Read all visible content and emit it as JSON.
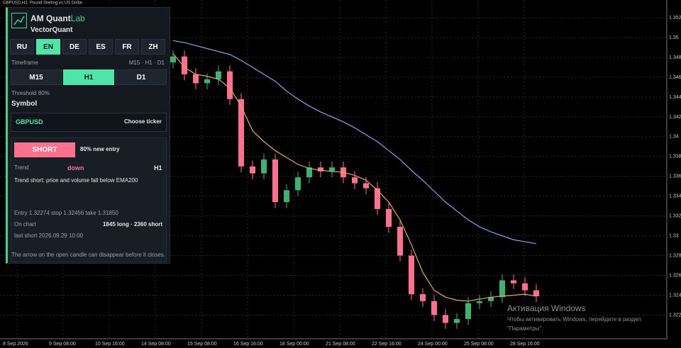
{
  "header": {
    "title": "GBPUSD,H1:  Pound Sterling vs US Dollar"
  },
  "chart_data": {
    "type": "candlestick",
    "open": [
      1.3475,
      1.3481,
      1.3463,
      1.3454,
      1.3458,
      1.3466,
      1.3438,
      1.337,
      1.3363,
      1.3377,
      1.3334,
      1.3346,
      1.3359,
      1.3369,
      1.3365,
      1.3369,
      1.3359,
      1.3353,
      1.3348,
      1.3327,
      1.3309,
      1.328,
      1.3241,
      1.3234,
      1.322,
      1.3212,
      1.3216,
      1.3232,
      1.3234,
      1.3238,
      1.3255,
      1.3252,
      1.3245
    ],
    "high": [
      1.3487,
      1.3487,
      1.3469,
      1.3464,
      1.3472,
      1.3472,
      1.3444,
      1.3376,
      1.3383,
      1.3383,
      1.3352,
      1.3365,
      1.3375,
      1.3375,
      1.3375,
      1.3375,
      1.3365,
      1.3359,
      1.3354,
      1.3333,
      1.3315,
      1.3286,
      1.3247,
      1.324,
      1.3226,
      1.3222,
      1.3238,
      1.324,
      1.3244,
      1.3261,
      1.3261,
      1.3258,
      1.3251
    ],
    "low": [
      1.3469,
      1.3457,
      1.3448,
      1.3448,
      1.3452,
      1.3432,
      1.3364,
      1.3357,
      1.3357,
      1.3328,
      1.3328,
      1.334,
      1.3353,
      1.3359,
      1.3359,
      1.3353,
      1.3347,
      1.3342,
      1.3321,
      1.3303,
      1.3274,
      1.3235,
      1.3228,
      1.3214,
      1.3206,
      1.3206,
      1.321,
      1.3226,
      1.3228,
      1.3232,
      1.3246,
      1.3239,
      1.3233
    ],
    "close": [
      1.3481,
      1.3463,
      1.3454,
      1.3458,
      1.3466,
      1.3438,
      1.337,
      1.3363,
      1.3377,
      1.3334,
      1.3346,
      1.3359,
      1.3369,
      1.3365,
      1.3369,
      1.3359,
      1.3353,
      1.3348,
      1.3327,
      1.3309,
      1.328,
      1.3241,
      1.3234,
      1.322,
      1.3212,
      1.3216,
      1.3232,
      1.3234,
      1.3238,
      1.3255,
      1.3252,
      1.3245,
      1.3239
    ],
    "up_color": "#3cb371",
    "down_color": "#ff6f8e",
    "lines": [
      {
        "color": "#e8a84a",
        "values": [
          1.3484,
          1.347,
          1.3463,
          1.3461,
          1.3458,
          1.3449,
          1.3431,
          1.3406,
          1.3395,
          1.3386,
          1.3379,
          1.3372,
          1.3368,
          1.3366,
          1.3365,
          1.3364,
          1.3361,
          1.3356,
          1.3346,
          1.3334,
          1.3316,
          1.3291,
          1.3263,
          1.3245,
          1.3238,
          1.3235,
          1.3234,
          1.3236,
          1.3238,
          1.3239,
          1.324,
          1.3241,
          1.3239
        ]
      },
      {
        "color": "#7fa6e8",
        "values": [
          1.3497,
          1.3495,
          1.3492,
          1.3489,
          1.3486,
          1.3483,
          1.3477,
          1.347,
          1.3463,
          1.3456,
          1.3446,
          1.3438,
          1.3431,
          1.3425,
          1.342,
          1.3415,
          1.3409,
          1.3402,
          1.3395,
          1.3386,
          1.3377,
          1.3366,
          1.3356,
          1.3345,
          1.3334,
          1.3325,
          1.3316,
          1.3309,
          1.3304,
          1.33,
          1.3296,
          1.3294,
          1.3292
        ]
      }
    ],
    "ylim": [
      1.3196,
      1.3538
    ],
    "yticks": [
      1.322,
      1.324,
      1.326,
      1.328,
      1.33,
      1.332,
      1.334,
      1.336,
      1.338,
      1.34,
      1.342,
      1.344,
      1.346,
      1.348,
      1.35,
      1.352
    ],
    "xtick_labels": [
      "8 Sep 2026",
      "9 Sep 08:00",
      "10 Sep 16:00",
      "14 Sep 08:00",
      "15 Sep 08:00",
      "16 Sep 16:00",
      "18 Sep 00:00",
      "21 Sep 08:00",
      "22 Sep 16:00",
      "24 Sep 00:00",
      "25 Sep 08:00",
      "28 Sep 16:00"
    ],
    "grid": true
  },
  "panel": {
    "brand": "AM Quant",
    "brand_accent": "Lab",
    "subtitle": "VectorQuant",
    "languages": [
      "RU",
      "EN",
      "DE",
      "ES",
      "FR",
      "ZH"
    ],
    "timeframe_label": "Timeframe",
    "timeframe_hint": "M15 · H1 · D1",
    "timeframes": [
      "M15",
      "H1",
      "D1"
    ],
    "threshold": "Threshold 80%",
    "symbol_label": "Symbol",
    "symbol": "GBPUSD",
    "choose": "Choose ticker",
    "signal": "SHORT",
    "signal_note": "80%  new entry",
    "trend_label": "Trend",
    "trend_value": "down",
    "trend_tf": "H1",
    "trend_text": "Trend short: price and volume fall below EMA200",
    "levels": "Entry 1.32274   stop 1.32456   take 1.31850",
    "on_chart_label": "On chart",
    "on_chart": "1845 long · 2360 short",
    "last": "last short 2026.09.29 10:00",
    "note": "The arrow on the open candle can disappear before it closes."
  },
  "watermark": {
    "title": "Активация Windows",
    "line1": "Чтобы активировать Windows, перейдите в раздел",
    "line2": "\"Параметры\"."
  }
}
